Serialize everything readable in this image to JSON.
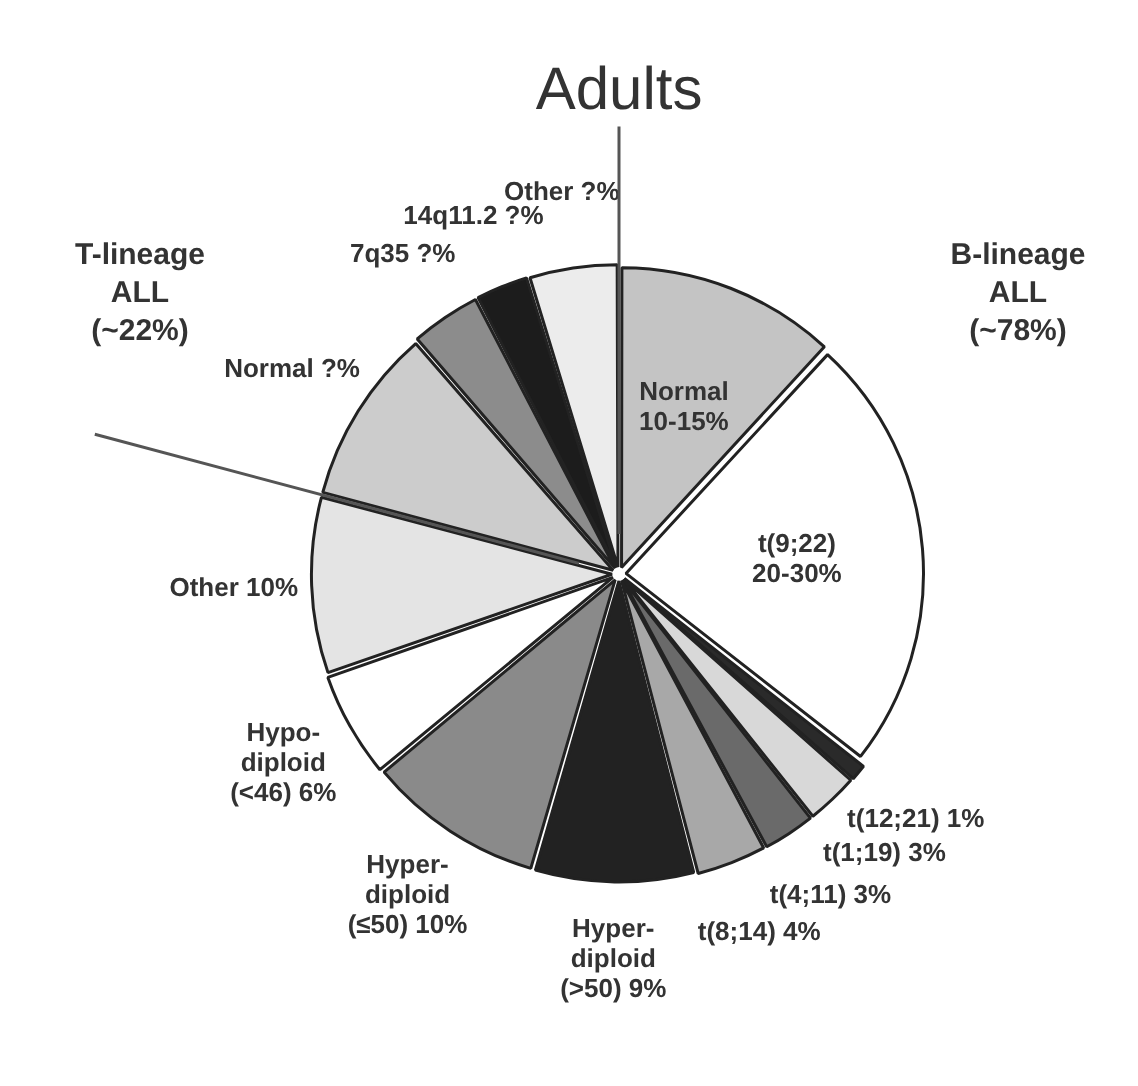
{
  "chart_data": {
    "type": "pie",
    "title": "Adults",
    "categories": [
      "Normal 10-15%",
      "t(9;22) 20-30%",
      "t(12;21)",
      "t(1;19)",
      "t(4;11)",
      "t(8;14)",
      "Hyper-diploid (>50)",
      "Hyper-diploid (≤50)",
      "Hypo-diploid (<46)",
      "Other",
      "Normal",
      "7q35",
      "14q11.2",
      "Other"
    ],
    "values": [
      12.5,
      25,
      1,
      3,
      3,
      4,
      9,
      10,
      6,
      10,
      10,
      4,
      3,
      5
    ],
    "value_labels": [
      null,
      null,
      "1%",
      "3%",
      "3%",
      "4%",
      "9%",
      "10%",
      "6%",
      "10%",
      "?%",
      "?%",
      "?%",
      "?%"
    ],
    "colors": [
      "#c4c4c4",
      "#ffffff",
      "#2a2a2a",
      "#d8d8d8",
      "#6a6a6a",
      "#a8a8a8",
      "#222222",
      "#8a8a8a",
      "#ffffff",
      "#e4e4e4",
      "#cccccc",
      "#8c8c8c",
      "#1c1c1c",
      "#ececec"
    ],
    "annotations": [
      "T-lineage ALL (~22%)",
      "B-lineage ALL (~78%)"
    ],
    "legend": false
  }
}
